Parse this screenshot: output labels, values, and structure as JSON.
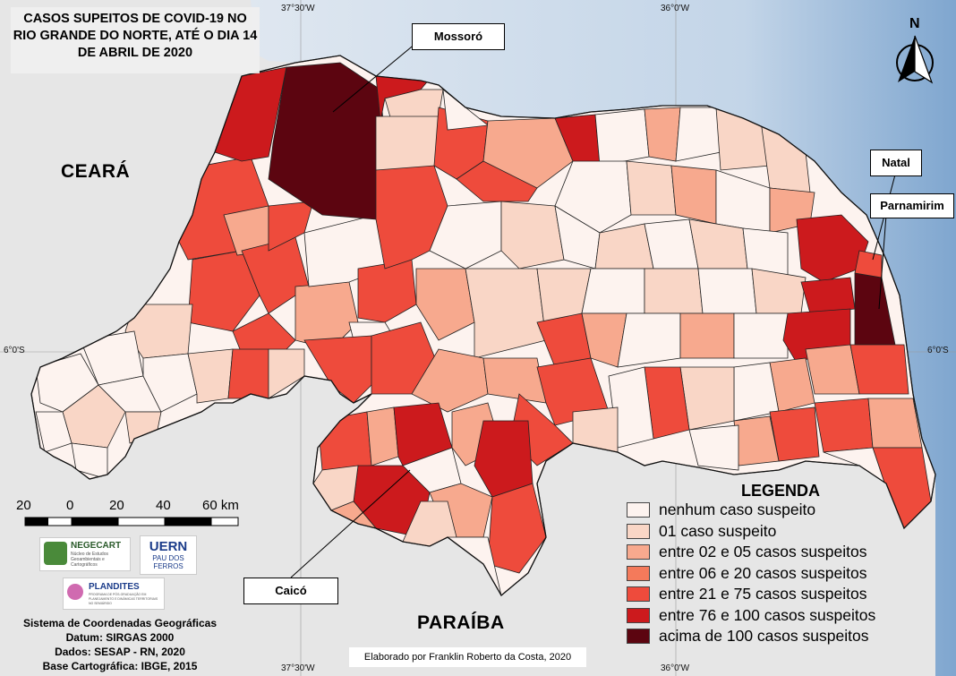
{
  "title": "CASOS SUPEITOS DE COVID-19 NO RIO GRANDE DO NORTE, ATÉ O DIA 14 DE ABRIL DE 2020",
  "coordinates": {
    "top_left": "37°30'W",
    "top_right": "36°0'W",
    "bottom_left": "37°30'W",
    "bottom_right": "36°0'W",
    "left": "6°0'S",
    "right": "6°0'S"
  },
  "states": {
    "ceara": "CEARÁ",
    "paraiba": "PARAÍBA"
  },
  "cities": {
    "mossoro": "Mossoró",
    "natal": "Natal",
    "parnamirim": "Parnamirim",
    "caico": "Caicó"
  },
  "north_arrow_label": "N",
  "legend": {
    "title": "LEGENDA",
    "items": [
      {
        "label": "nenhum caso suspeito",
        "color": "#fdf3ef"
      },
      {
        "label": "01 caso suspeito",
        "color": "#f9d6c6"
      },
      {
        "label": "entre 02 e 05 casos suspeitos",
        "color": "#f7a98e"
      },
      {
        "label": "entre 06 e 20 casos suspeitos",
        "color": "#f47a5b"
      },
      {
        "label": "entre 21 e 75 casos suspeitos",
        "color": "#ee4b3c"
      },
      {
        "label": "entre 76 e 100 casos suspeitos",
        "color": "#cc1a1d"
      },
      {
        "label": "acima de 100 casos suspeitos",
        "color": "#5c0510"
      }
    ]
  },
  "scale": {
    "labels": [
      "20",
      "0",
      "20",
      "40",
      "60 km"
    ]
  },
  "logos": {
    "negecart": "NEGECART",
    "negecart_sub": "Núcleo de Estudos Geoambientais e Cartográficos",
    "uern": "UERN",
    "uern_sub": "PAU DOS FERROS",
    "plandites": "PLANDITES",
    "plandites_sub": "PROGRAMA DE PÓS-GRADUAÇÃO EM PLANEJAMENTO E DINÂMICAS TERRITORIAIS NO SEMIÁRIDO"
  },
  "meta": {
    "line1": "Sistema de Coordenadas Geográficas",
    "line2": "Datum: SIRGAS 2000",
    "line3": "Dados: SESAP - RN, 2020",
    "line4": "Base Cartográfica: IBGE, 2015"
  },
  "credit": "Elaborado por Franklin Roberto da Costa, 2020",
  "colors": {
    "ocean": "#c9d9ea",
    "land": "#e6e6e6",
    "none": "#fdf3ef",
    "one": "#f9d6c6",
    "c2_5": "#f7a98e",
    "c6_20": "#f47a5b",
    "c21_75": "#ee4b3c",
    "c76_100": "#cc1a1d",
    "c100": "#5c0510"
  }
}
